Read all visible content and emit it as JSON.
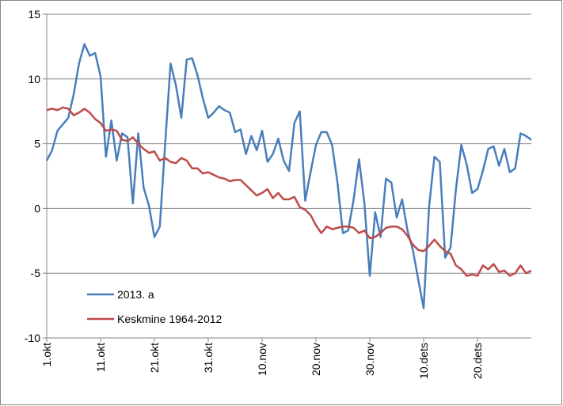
{
  "chart_data": {
    "type": "line",
    "categories": [
      "1.okt",
      null,
      null,
      null,
      null,
      null,
      null,
      null,
      null,
      null,
      "11.okt",
      null,
      null,
      null,
      null,
      null,
      null,
      null,
      null,
      null,
      "21.okt",
      null,
      null,
      null,
      null,
      null,
      null,
      null,
      null,
      null,
      "31.okt",
      null,
      null,
      null,
      null,
      null,
      null,
      null,
      null,
      null,
      "10.nov",
      null,
      null,
      null,
      null,
      null,
      null,
      null,
      null,
      null,
      "20.nov",
      null,
      null,
      null,
      null,
      null,
      null,
      null,
      null,
      null,
      "30.nov",
      null,
      null,
      null,
      null,
      null,
      null,
      null,
      null,
      null,
      "10.dets",
      null,
      null,
      null,
      null,
      null,
      null,
      null,
      null,
      null,
      "20.dets",
      null,
      null,
      null,
      null,
      null,
      null,
      null,
      null,
      null,
      null
    ],
    "series": [
      {
        "name": "2013. a",
        "color": "#4a7ebb",
        "values": [
          3.7,
          4.5,
          6.0,
          6.5,
          7.0,
          8.8,
          11.2,
          12.7,
          11.8,
          12.0,
          10.2,
          4.0,
          6.8,
          3.7,
          5.8,
          5.5,
          0.4,
          5.8,
          1.6,
          0.2,
          -2.2,
          -1.4,
          5.0,
          11.2,
          9.5,
          7.0,
          11.5,
          11.6,
          10.3,
          8.5,
          7.0,
          7.4,
          7.9,
          7.6,
          7.4,
          5.9,
          6.1,
          4.2,
          5.6,
          4.5,
          6.0,
          3.6,
          4.2,
          5.4,
          3.7,
          2.9,
          6.6,
          7.5,
          0.6,
          2.8,
          4.9,
          5.9,
          5.9,
          4.9,
          2.0,
          -1.9,
          -1.7,
          0.7,
          3.8,
          0.4,
          -5.2,
          -0.3,
          -2.2,
          2.3,
          2.0,
          -0.7,
          0.7,
          -1.7,
          -3.2,
          -5.5,
          -7.7,
          0.1,
          4.0,
          3.6,
          -3.8,
          -3.0,
          1.5,
          4.9,
          3.4,
          1.2,
          1.5,
          2.9,
          4.6,
          4.8,
          3.3,
          4.6,
          2.8,
          3.1,
          5.8,
          5.6,
          5.3
        ]
      },
      {
        "name": "Keskmine 1964-2012",
        "color": "#be4b48",
        "values": [
          7.6,
          7.7,
          7.6,
          7.8,
          7.7,
          7.2,
          7.4,
          7.7,
          7.4,
          6.9,
          6.6,
          6.0,
          6.1,
          6.0,
          5.3,
          5.2,
          5.5,
          5.0,
          4.6,
          4.3,
          4.4,
          3.7,
          3.9,
          3.6,
          3.5,
          3.9,
          3.7,
          3.1,
          3.1,
          2.7,
          2.8,
          2.6,
          2.4,
          2.3,
          2.1,
          2.2,
          2.2,
          1.8,
          1.4,
          1.0,
          1.2,
          1.5,
          0.8,
          1.2,
          0.7,
          0.7,
          0.9,
          0.1,
          -0.1,
          -0.5,
          -1.3,
          -1.9,
          -1.4,
          -1.6,
          -1.5,
          -1.4,
          -1.4,
          -1.5,
          -1.9,
          -1.7,
          -2.3,
          -2.2,
          -1.9,
          -1.5,
          -1.4,
          -1.4,
          -1.6,
          -2.1,
          -2.8,
          -3.2,
          -3.3,
          -2.9,
          -2.4,
          -2.9,
          -3.3,
          -3.5,
          -4.4,
          -4.7,
          -5.2,
          -5.1,
          -5.2,
          -4.4,
          -4.7,
          -4.3,
          -4.9,
          -4.8,
          -5.2,
          -5.0,
          -4.4,
          -5.0,
          -4.8
        ]
      }
    ],
    "ylim": [
      -10,
      15
    ],
    "yticks": [
      -10,
      -5,
      0,
      5,
      10,
      15
    ],
    "grid": true,
    "legend": "lower-left"
  }
}
